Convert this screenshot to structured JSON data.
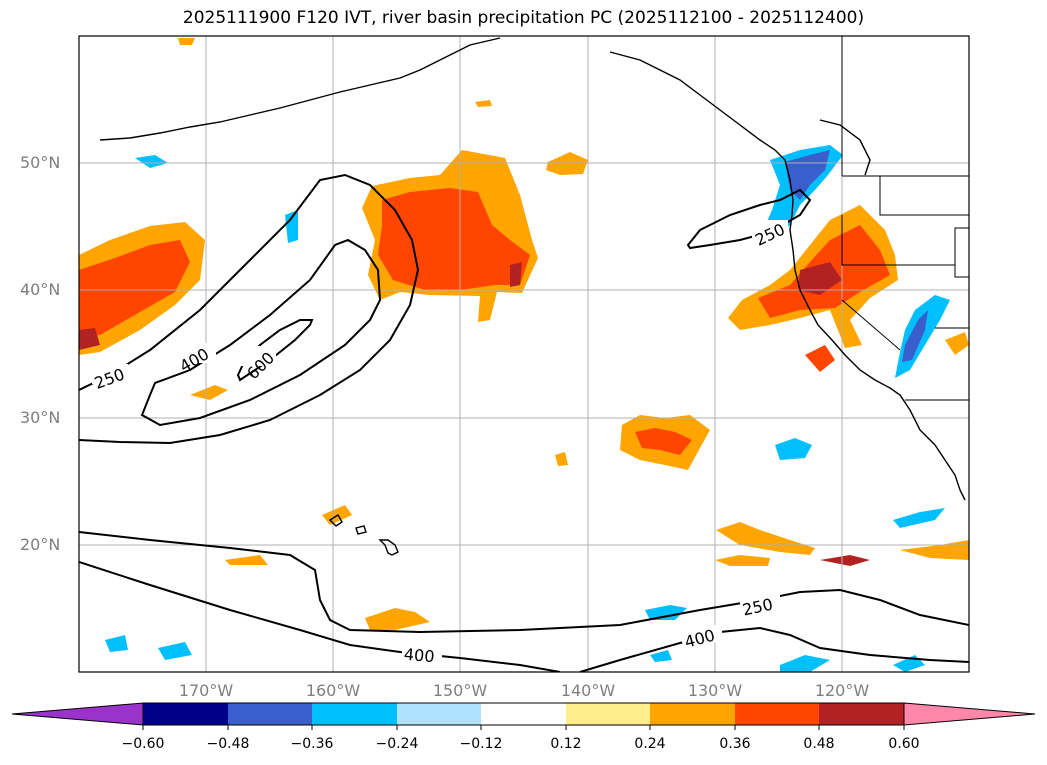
{
  "title": "2025111900 F120 IVT, river basin precipitation PC (2025112100 - 2025112400)",
  "map": {
    "lat_labels": [
      "50°N",
      "40°N",
      "30°N",
      "20°N"
    ],
    "lon_labels": [
      "170°W",
      "160°W",
      "150°W",
      "140°W",
      "130°W",
      "120°W"
    ],
    "contour_labels": [
      "250",
      "400",
      "600",
      "250",
      "250",
      "400",
      "400"
    ]
  },
  "colorbar": {
    "ticks": [
      "−0.60",
      "−0.48",
      "−0.36",
      "−0.24",
      "−0.12",
      "0.12",
      "0.24",
      "0.36",
      "0.48",
      "0.60"
    ],
    "colors": [
      "#9933cc",
      "#00008b",
      "#3a5fcd",
      "#00bfff",
      "#b0e2ff",
      "#ffffff",
      "#ffec8b",
      "#ffa500",
      "#ff4500",
      "#b22222",
      "#ff88aa"
    ]
  },
  "colors": {
    "orange": "#ffa500",
    "orangered": "#ff4500",
    "firebrick": "#b22222",
    "deepskyblue": "#00bfff",
    "royalblue": "#3a5fcd",
    "grid": "#b0b0b0"
  }
}
